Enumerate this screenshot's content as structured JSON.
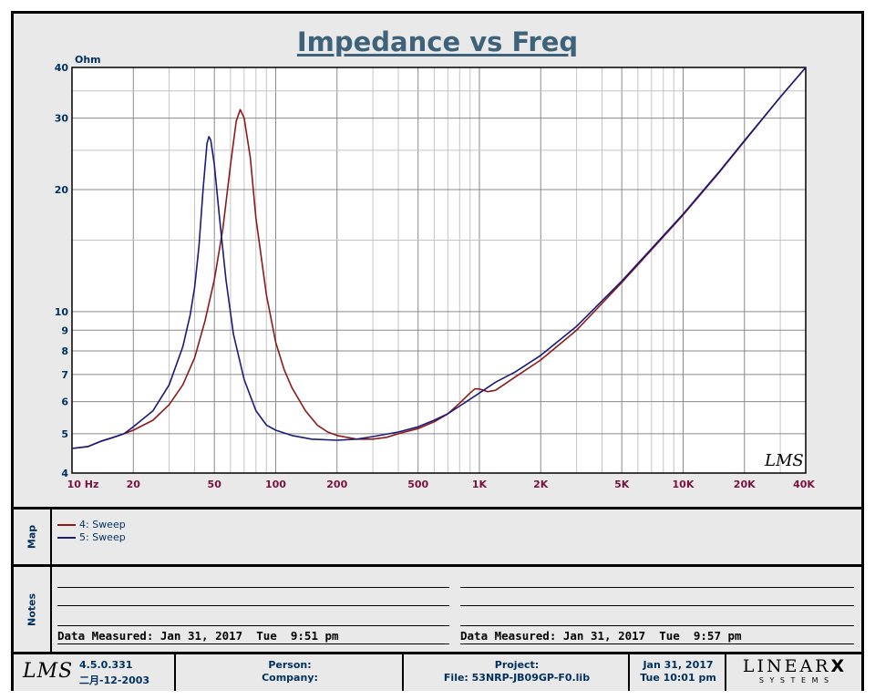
{
  "chart_data": {
    "type": "line",
    "title": "Impedance vs Freq",
    "ylabel": "Ohm",
    "xscale": "log",
    "yscale": "log",
    "xlim": [
      10,
      40000
    ],
    "ylim": [
      4,
      40
    ],
    "x_ticks": [
      {
        "value": 10,
        "label": "10  Hz"
      },
      {
        "value": 20,
        "label": "20"
      },
      {
        "value": 50,
        "label": "50"
      },
      {
        "value": 100,
        "label": "100"
      },
      {
        "value": 200,
        "label": "200"
      },
      {
        "value": 500,
        "label": "500"
      },
      {
        "value": 1000,
        "label": "1K"
      },
      {
        "value": 2000,
        "label": "2K"
      },
      {
        "value": 5000,
        "label": "5K"
      },
      {
        "value": 10000,
        "label": "10K"
      },
      {
        "value": 20000,
        "label": "20K"
      },
      {
        "value": 40000,
        "label": "40K"
      }
    ],
    "y_ticks": [
      {
        "value": 4,
        "label": "4"
      },
      {
        "value": 5,
        "label": "5"
      },
      {
        "value": 6,
        "label": "6"
      },
      {
        "value": 7,
        "label": "7"
      },
      {
        "value": 8,
        "label": "8"
      },
      {
        "value": 9,
        "label": "9"
      },
      {
        "value": 10,
        "label": "10"
      },
      {
        "value": 20,
        "label": "20"
      },
      {
        "value": 30,
        "label": "30"
      },
      {
        "value": 40,
        "label": "40"
      }
    ],
    "grid": true,
    "series": [
      {
        "name": "4: Sweep",
        "color": "#8b1a1a",
        "points": [
          [
            10,
            4.6
          ],
          [
            12,
            4.65
          ],
          [
            14,
            4.8
          ],
          [
            16,
            4.9
          ],
          [
            18,
            5.0
          ],
          [
            20,
            5.1
          ],
          [
            25,
            5.4
          ],
          [
            30,
            5.9
          ],
          [
            35,
            6.6
          ],
          [
            40,
            7.7
          ],
          [
            45,
            9.5
          ],
          [
            50,
            12.0
          ],
          [
            55,
            16.0
          ],
          [
            60,
            23.0
          ],
          [
            64,
            29.5
          ],
          [
            67,
            31.5
          ],
          [
            70,
            30.0
          ],
          [
            75,
            24.0
          ],
          [
            80,
            17.0
          ],
          [
            90,
            11.0
          ],
          [
            100,
            8.4
          ],
          [
            110,
            7.2
          ],
          [
            120,
            6.5
          ],
          [
            140,
            5.7
          ],
          [
            160,
            5.25
          ],
          [
            180,
            5.05
          ],
          [
            200,
            4.95
          ],
          [
            250,
            4.85
          ],
          [
            300,
            4.85
          ],
          [
            350,
            4.9
          ],
          [
            400,
            5.0
          ],
          [
            500,
            5.15
          ],
          [
            600,
            5.35
          ],
          [
            700,
            5.6
          ],
          [
            800,
            5.95
          ],
          [
            900,
            6.3
          ],
          [
            950,
            6.45
          ],
          [
            1000,
            6.45
          ],
          [
            1100,
            6.35
          ],
          [
            1200,
            6.4
          ],
          [
            1500,
            6.9
          ],
          [
            2000,
            7.6
          ],
          [
            3000,
            9.0
          ],
          [
            5000,
            11.8
          ],
          [
            7000,
            14.2
          ],
          [
            10000,
            17.3
          ],
          [
            15000,
            22.0
          ],
          [
            20000,
            26.3
          ],
          [
            30000,
            33.8
          ],
          [
            40000,
            40.0
          ]
        ]
      },
      {
        "name": "5: Sweep",
        "color": "#1a1a7a",
        "points": [
          [
            10,
            4.6
          ],
          [
            12,
            4.65
          ],
          [
            14,
            4.8
          ],
          [
            16,
            4.9
          ],
          [
            18,
            5.0
          ],
          [
            20,
            5.2
          ],
          [
            25,
            5.7
          ],
          [
            30,
            6.6
          ],
          [
            35,
            8.2
          ],
          [
            38,
            9.8
          ],
          [
            40,
            11.5
          ],
          [
            42,
            14.5
          ],
          [
            44,
            20.0
          ],
          [
            46,
            26.0
          ],
          [
            47,
            27.0
          ],
          [
            48,
            26.5
          ],
          [
            50,
            23.0
          ],
          [
            53,
            17.0
          ],
          [
            57,
            12.0
          ],
          [
            62,
            8.8
          ],
          [
            70,
            6.8
          ],
          [
            80,
            5.7
          ],
          [
            90,
            5.25
          ],
          [
            100,
            5.1
          ],
          [
            120,
            4.95
          ],
          [
            150,
            4.85
          ],
          [
            200,
            4.82
          ],
          [
            250,
            4.85
          ],
          [
            300,
            4.92
          ],
          [
            400,
            5.05
          ],
          [
            500,
            5.2
          ],
          [
            600,
            5.4
          ],
          [
            700,
            5.6
          ],
          [
            800,
            5.85
          ],
          [
            1000,
            6.3
          ],
          [
            1200,
            6.7
          ],
          [
            1500,
            7.1
          ],
          [
            2000,
            7.8
          ],
          [
            3000,
            9.2
          ],
          [
            5000,
            11.9
          ],
          [
            7000,
            14.3
          ],
          [
            10000,
            17.4
          ],
          [
            15000,
            22.1
          ],
          [
            20000,
            26.4
          ],
          [
            30000,
            33.8
          ],
          [
            40000,
            40.0
          ]
        ]
      }
    ]
  },
  "map": {
    "label": "Map",
    "legend": [
      {
        "text": "4: Sweep",
        "color": "#8b1a1a"
      },
      {
        "text": "5: Sweep",
        "color": "#1a1a7a"
      }
    ]
  },
  "notes": {
    "label": "Notes",
    "left_measured": "Data Measured: Jan 31, 2017  Tue  9:51 pm",
    "right_measured": "Data Measured: Jan 31, 2017  Tue  9:57 pm"
  },
  "footer": {
    "logo": "LMS",
    "version": "4.5.0.331",
    "version_date": "二月-12-2003",
    "person_label": "Person:",
    "company_label": "Company:",
    "project_label": "Project:",
    "file_label": "File: 53NRP-JB09GP-F0.lib",
    "date": "Jan 31, 2017",
    "time": "Tue 10:01 pm",
    "brand": "LINEAR",
    "brand_x": "X",
    "brand_sub": "S Y S T E M S"
  },
  "watermark": "LMS"
}
